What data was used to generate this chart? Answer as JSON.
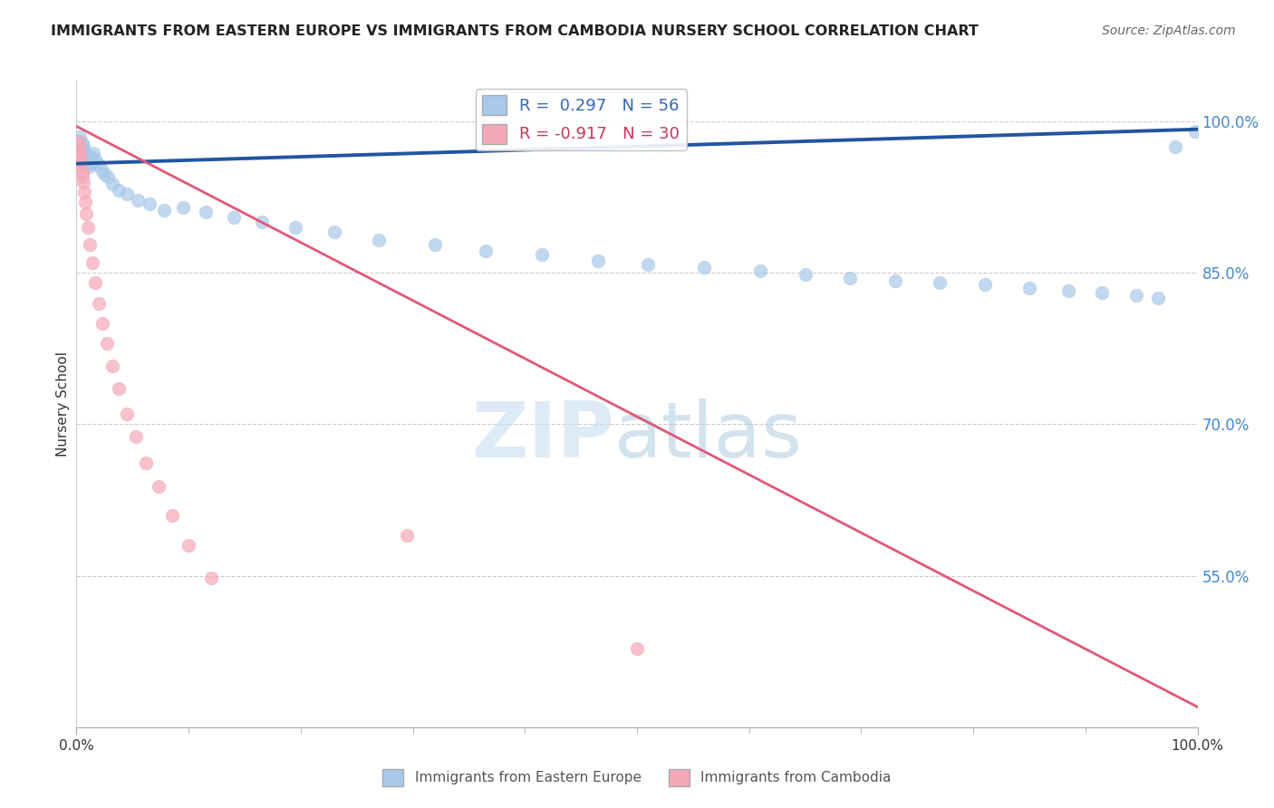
{
  "title": "IMMIGRANTS FROM EASTERN EUROPE VS IMMIGRANTS FROM CAMBODIA NURSERY SCHOOL CORRELATION CHART",
  "source": "Source: ZipAtlas.com",
  "ylabel": "Nursery School",
  "xlim": [
    0.0,
    1.0
  ],
  "ylim": [
    0.4,
    1.04
  ],
  "yticks": [
    0.55,
    0.7,
    0.85,
    1.0
  ],
  "ytick_labels": [
    "55.0%",
    "70.0%",
    "85.0%",
    "100.0%"
  ],
  "blue_color": "#a8c8e8",
  "pink_color": "#f4a8b8",
  "blue_line_color": "#2255a0",
  "pink_line_color": "#e05878",
  "legend_blue_label": "R =  0.297   N = 56",
  "legend_pink_label": "R = -0.917   N = 30",
  "blue_scatter_x": [
    0.001,
    0.002,
    0.003,
    0.003,
    0.004,
    0.004,
    0.005,
    0.005,
    0.006,
    0.006,
    0.007,
    0.007,
    0.008,
    0.009,
    0.01,
    0.011,
    0.012,
    0.013,
    0.015,
    0.017,
    0.019,
    0.022,
    0.025,
    0.028,
    0.032,
    0.038,
    0.045,
    0.055,
    0.065,
    0.078,
    0.095,
    0.115,
    0.14,
    0.165,
    0.195,
    0.23,
    0.27,
    0.32,
    0.365,
    0.415,
    0.465,
    0.51,
    0.56,
    0.61,
    0.65,
    0.69,
    0.73,
    0.77,
    0.81,
    0.85,
    0.885,
    0.915,
    0.945,
    0.965,
    0.98,
    0.998
  ],
  "blue_scatter_y": [
    0.975,
    0.98,
    0.985,
    0.978,
    0.975,
    0.97,
    0.968,
    0.978,
    0.975,
    0.972,
    0.97,
    0.965,
    0.962,
    0.958,
    0.96,
    0.955,
    0.958,
    0.965,
    0.968,
    0.962,
    0.958,
    0.952,
    0.948,
    0.945,
    0.938,
    0.932,
    0.928,
    0.922,
    0.918,
    0.912,
    0.915,
    0.91,
    0.905,
    0.9,
    0.895,
    0.89,
    0.882,
    0.878,
    0.872,
    0.868,
    0.862,
    0.858,
    0.855,
    0.852,
    0.848,
    0.845,
    0.842,
    0.84,
    0.838,
    0.835,
    0.832,
    0.83,
    0.828,
    0.825,
    0.975,
    0.99
  ],
  "pink_scatter_x": [
    0.001,
    0.002,
    0.003,
    0.003,
    0.004,
    0.004,
    0.005,
    0.005,
    0.006,
    0.007,
    0.008,
    0.009,
    0.01,
    0.012,
    0.014,
    0.017,
    0.02,
    0.023,
    0.027,
    0.032,
    0.038,
    0.045,
    0.053,
    0.062,
    0.073,
    0.085,
    0.1,
    0.12,
    0.295,
    0.5
  ],
  "pink_scatter_y": [
    0.98,
    0.975,
    0.97,
    0.965,
    0.96,
    0.955,
    0.95,
    0.945,
    0.94,
    0.93,
    0.92,
    0.908,
    0.895,
    0.878,
    0.86,
    0.84,
    0.82,
    0.8,
    0.78,
    0.758,
    0.735,
    0.71,
    0.688,
    0.662,
    0.638,
    0.61,
    0.58,
    0.548,
    0.59,
    0.478
  ],
  "blue_trend_x": [
    0.0,
    1.0
  ],
  "blue_trend_y": [
    0.958,
    0.992
  ],
  "pink_trend_x": [
    0.0,
    1.0
  ],
  "pink_trend_y": [
    0.995,
    0.42
  ]
}
